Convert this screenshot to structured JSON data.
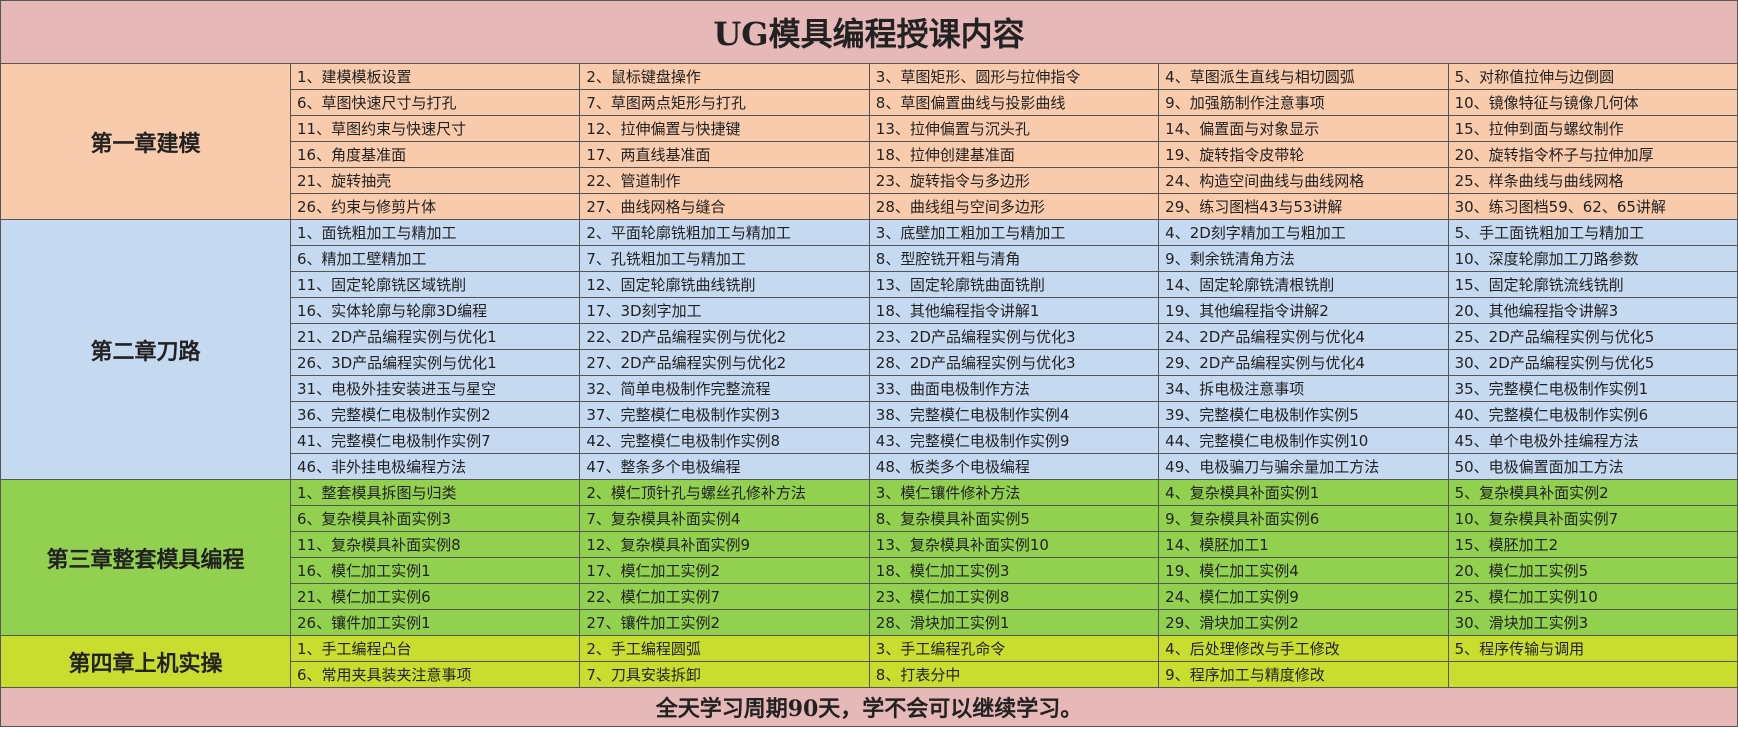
{
  "title": "UG模具编程授课内容",
  "chapters": [
    {
      "name": "第一章建模",
      "rows": [
        [
          "1、建模模板设置",
          "2、鼠标键盘操作",
          "3、草图矩形、圆形与拉伸指令",
          "4、草图派生直线与相切圆弧",
          "5、对称值拉伸与边倒圆"
        ],
        [
          "6、草图快速尺寸与打孔",
          "7、草图两点矩形与打孔",
          "8、草图偏置曲线与投影曲线",
          "9、加强筋制作注意事项",
          "10、镜像特征与镜像几何体"
        ],
        [
          "11、草图约束与快速尺寸",
          "12、拉伸偏置与快捷键",
          "13、拉伸偏置与沉头孔",
          "14、偏置面与对象显示",
          "15、拉伸到面与螺纹制作"
        ],
        [
          "16、角度基准面",
          "17、两直线基准面",
          "18、拉伸创建基准面",
          "19、旋转指令皮带轮",
          "20、旋转指令杯子与拉伸加厚"
        ],
        [
          "21、旋转抽壳",
          "22、管道制作",
          "23、旋转指令与多边形",
          "24、构造空间曲线与曲线网格",
          "25、样条曲线与曲线网格"
        ],
        [
          "26、约束与修剪片体",
          "27、曲线网格与缝合",
          "28、曲线组与空间多边形",
          "29、练习图档43与53讲解",
          "30、练习图档59、62、65讲解"
        ]
      ]
    },
    {
      "name": "第二章刀路",
      "rows": [
        [
          "1、面铣粗加工与精加工",
          "2、平面轮廓铣粗加工与精加工",
          "3、底壁加工粗加工与精加工",
          "4、2D刻字精加工与粗加工",
          "5、手工面铣粗加工与精加工"
        ],
        [
          "6、精加工壁精加工",
          "7、孔铣粗加工与精加工",
          "8、型腔铣开粗与清角",
          "9、剩余铣清角方法",
          "10、深度轮廓加工刀路参数"
        ],
        [
          "11、固定轮廓铣区域铣削",
          "12、固定轮廓铣曲线铣削",
          "13、固定轮廓铣曲面铣削",
          "14、固定轮廓铣清根铣削",
          "15、固定轮廓铣流线铣削"
        ],
        [
          "16、实体轮廓与轮廓3D编程",
          "17、3D刻字加工",
          "18、其他编程指令讲解1",
          "19、其他编程指令讲解2",
          "20、其他编程指令讲解3"
        ],
        [
          "21、2D产品编程实例与优化1",
          "22、2D产品编程实例与优化2",
          "23、2D产品编程实例与优化3",
          "24、2D产品编程实例与优化4",
          "25、2D产品编程实例与优化5"
        ],
        [
          "26、3D产品编程实例与优化1",
          "27、2D产品编程实例与优化2",
          "28、2D产品编程实例与优化3",
          "29、2D产品编程实例与优化4",
          "30、2D产品编程实例与优化5"
        ],
        [
          "31、电极外挂安装进玉与星空",
          "32、简单电极制作完整流程",
          "33、曲面电极制作方法",
          "34、拆电极注意事项",
          "35、完整模仁电极制作实例1"
        ],
        [
          "36、完整模仁电极制作实例2",
          "37、完整模仁电极制作实例3",
          "38、完整模仁电极制作实例4",
          "39、完整模仁电极制作实例5",
          "40、完整模仁电极制作实例6"
        ],
        [
          "41、完整模仁电极制作实例7",
          "42、完整模仁电极制作实例8",
          "43、完整模仁电极制作实例9",
          "44、完整模仁电极制作实例10",
          "45、单个电极外挂编程方法"
        ],
        [
          "46、非外挂电极编程方法",
          "47、整条多个电极编程",
          "48、板类多个电极编程",
          "49、电极骗刀与骗余量加工方法",
          "50、电极偏置面加工方法"
        ]
      ]
    },
    {
      "name": "第三章整套模具编程",
      "rows": [
        [
          "1、整套模具拆图与归类",
          "2、模仁顶针孔与螺丝孔修补方法",
          "3、模仁镶件修补方法",
          "4、复杂模具补面实例1",
          "5、复杂模具补面实例2"
        ],
        [
          "6、复杂模具补面实例3",
          "7、复杂模具补面实例4",
          "8、复杂模具补面实例5",
          "9、复杂模具补面实例6",
          "10、复杂模具补面实例7"
        ],
        [
          "11、复杂模具补面实例8",
          "12、复杂模具补面实例9",
          "13、复杂模具补面实例10",
          "14、模胚加工1",
          "15、模胚加工2"
        ],
        [
          "16、模仁加工实例1",
          "17、模仁加工实例2",
          "18、模仁加工实例3",
          "19、模仁加工实例4",
          "20、模仁加工实例5"
        ],
        [
          "21、模仁加工实例6",
          "22、模仁加工实例7",
          "23、模仁加工实例8",
          "24、模仁加工实例9",
          "25、模仁加工实例10"
        ],
        [
          "26、镶件加工实例1",
          "27、镶件加工实例2",
          "28、滑块加工实例1",
          "29、滑块加工实例2",
          "30、滑块加工实例3"
        ]
      ]
    },
    {
      "name": "第四章上机实操",
      "rows": [
        [
          "1、手工编程凸台",
          "2、手工编程圆弧",
          "3、手工编程孔命令",
          "4、后处理修改与手工修改",
          "5、程序传输与调用"
        ],
        [
          "6、常用夹具装夹注意事项",
          "7、刀具安装拆卸",
          "8、打表分中",
          "9、程序加工与精度修改"
        ]
      ]
    }
  ],
  "footer": "全天学习周期90天，学不会可以继续学习。"
}
